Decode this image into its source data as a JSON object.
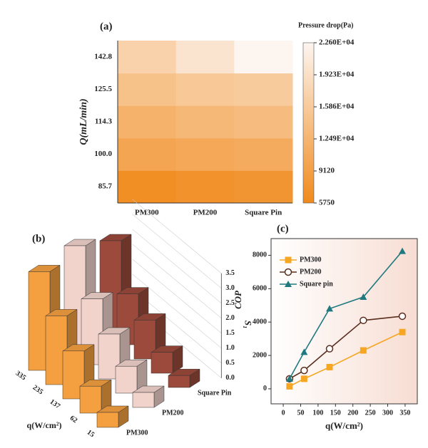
{
  "chart_data": [
    {
      "type": "heatmap",
      "label": "(a)",
      "ylabel": "Q(mL/min)",
      "colorbar_title": "Pressure drop(Pa)",
      "x_categories": [
        "PM300",
        "PM200",
        "Square Pin"
      ],
      "y_categories": [
        "85.7",
        "100.0",
        "114.3",
        "125.5",
        "142.8"
      ],
      "values": [
        [
          6500,
          7000,
          7500
        ],
        [
          10000,
          10500,
          11000
        ],
        [
          12000,
          13000,
          13500
        ],
        [
          14500,
          15500,
          16000
        ],
        [
          17000,
          20000,
          22600
        ]
      ],
      "clim": [
        5750,
        22600
      ],
      "colors": [
        "#f08a1c",
        "#fdf5f0"
      ],
      "cticks": [
        5750,
        9120,
        {
          "value": 12490,
          "label": "1.249E+04"
        },
        {
          "value": 15860,
          "label": "1.586E+04"
        },
        {
          "value": 19230,
          "label": "1.923E+04"
        },
        {
          "value": 22600,
          "label": "2.260E+04"
        }
      ]
    },
    {
      "type": "bar3d",
      "label": "(b)",
      "xlabel": "q(W/cm²)",
      "zlabel": "S₁",
      "categories": [
        "335",
        "235",
        "137",
        "62",
        "15"
      ],
      "series": [
        {
          "name": "PM300",
          "color": "#f5a040",
          "values": [
            3.3,
            2.3,
            1.6,
            0.9,
            0.5
          ]
        },
        {
          "name": "PM200",
          "color": "#f2d3cc",
          "values": [
            3.5,
            2.2,
            1.5,
            0.9,
            0.5
          ]
        },
        {
          "name": "Square Pin",
          "color": "#9b4a3c",
          "values": [
            3.0,
            1.7,
            1.3,
            0.7,
            0.4
          ]
        }
      ],
      "zlim": [
        0,
        3.5
      ],
      "zticks": [
        {
          "value": 0,
          "label": "0.0"
        },
        0.5,
        {
          "value": 1,
          "label": "1.0"
        },
        1.5,
        {
          "value": 2,
          "label": "2.0"
        },
        2.5,
        {
          "value": 3,
          "label": "3.0"
        },
        3.5
      ]
    },
    {
      "type": "line",
      "label": "(c)",
      "ylabel": "COP",
      "xlabel": "q(W/cm²)",
      "x": [
        18,
        60,
        133,
        230,
        342
      ],
      "series": [
        {
          "name": "PM300",
          "color": "#f5a623",
          "marker": "square",
          "values": [
            150,
            600,
            1300,
            2300,
            3400
          ]
        },
        {
          "name": "PM200",
          "color": "#5a2e1e",
          "marker": "circle",
          "values": [
            600,
            1100,
            2400,
            4100,
            4350
          ]
        },
        {
          "name": "Square pin",
          "color": "#1f7a80",
          "marker": "triangle",
          "values": [
            600,
            2200,
            4800,
            5500,
            8250
          ]
        }
      ],
      "xlim": [
        -35,
        385
      ],
      "xticks": [
        0,
        50,
        100,
        150,
        200,
        250,
        300,
        350
      ],
      "ylim": [
        -900,
        9000
      ],
      "yticks": [
        0,
        2000,
        4000,
        6000,
        8000
      ],
      "legend": "upper left"
    }
  ]
}
